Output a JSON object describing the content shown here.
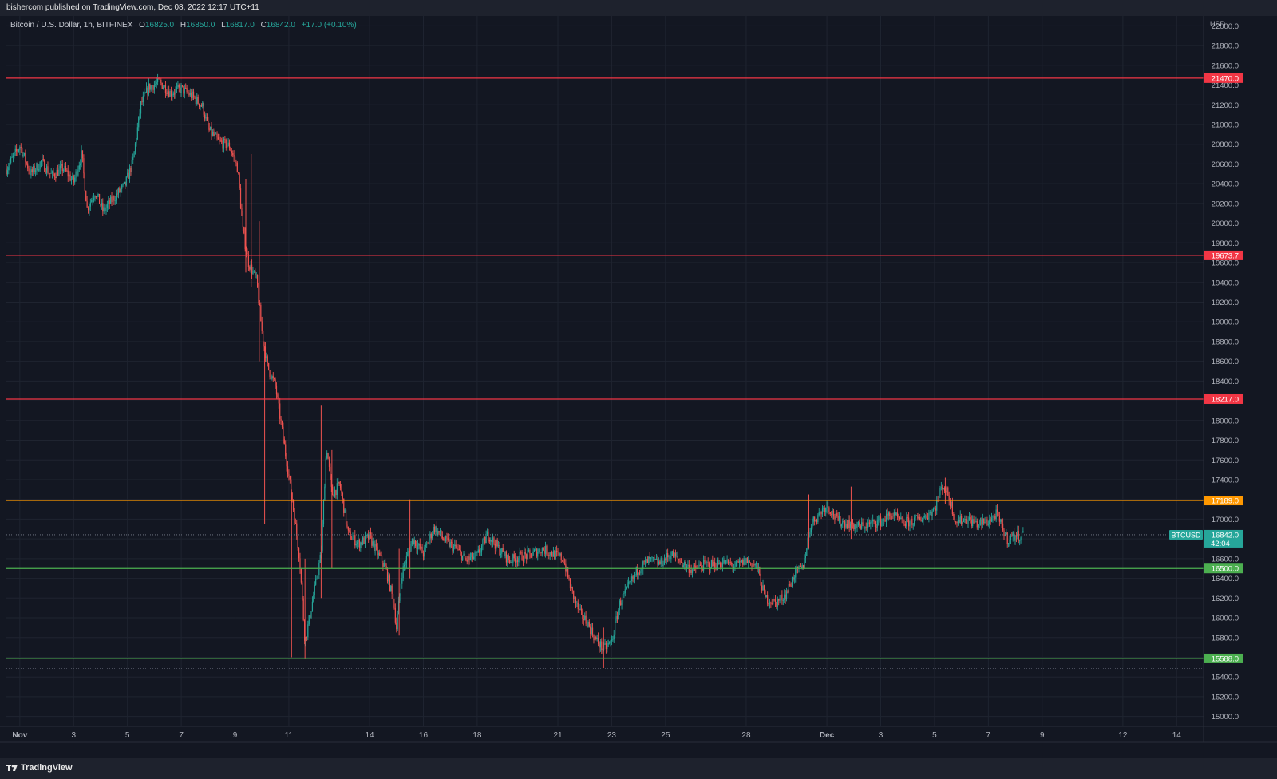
{
  "header": {
    "published_text": "bishercom published on TradingView.com, Dec 08, 2022 12:17 UTC+11"
  },
  "legend": {
    "symbol": "Bitcoin / U.S. Dollar, 1h, BITFINEX",
    "open_label": "O",
    "open": "16825.0",
    "high_label": "H",
    "high": "16850.0",
    "low_label": "L",
    "low": "16817.0",
    "close_label": "C",
    "close": "16842.0",
    "change": "+17.0 (+0.10%)"
  },
  "footer": {
    "brand": "TradingView"
  },
  "colors": {
    "background": "#131722",
    "grid": "#1f2430",
    "up": "#26a69a",
    "down": "#ef5350",
    "resistance": "#f23645",
    "pivot": "#ff9800",
    "support": "#4caf50",
    "price_label": "#26a69a"
  },
  "chart_data": {
    "type": "candlestick",
    "currency_label": "USD",
    "ylim": [
      14900,
      22100
    ],
    "y_ticks": [
      "22000.0",
      "21800.0",
      "21600.0",
      "21400.0",
      "21200.0",
      "21000.0",
      "20800.0",
      "20600.0",
      "20400.0",
      "20200.0",
      "20000.0",
      "19800.0",
      "19600.0",
      "19400.0",
      "19200.0",
      "19000.0",
      "18800.0",
      "18600.0",
      "18400.0",
      "18200.0",
      "18000.0",
      "17800.0",
      "17600.0",
      "17400.0",
      "17200.0",
      "17000.0",
      "16800.0",
      "16600.0",
      "16400.0",
      "16200.0",
      "16000.0",
      "15800.0",
      "15600.0",
      "15400.0",
      "15200.0",
      "15000.0"
    ],
    "x_ticks": [
      {
        "label": "Nov",
        "day": 0
      },
      {
        "label": "3",
        "day": 2
      },
      {
        "label": "5",
        "day": 4
      },
      {
        "label": "7",
        "day": 6
      },
      {
        "label": "9",
        "day": 8
      },
      {
        "label": "11",
        "day": 10
      },
      {
        "label": "14",
        "day": 13
      },
      {
        "label": "16",
        "day": 15
      },
      {
        "label": "18",
        "day": 17
      },
      {
        "label": "21",
        "day": 20
      },
      {
        "label": "23",
        "day": 22
      },
      {
        "label": "25",
        "day": 24
      },
      {
        "label": "28",
        "day": 27
      },
      {
        "label": "Dec",
        "day": 30
      },
      {
        "label": "3",
        "day": 32
      },
      {
        "label": "5",
        "day": 34
      },
      {
        "label": "7",
        "day": 36
      },
      {
        "label": "9",
        "day": 38
      },
      {
        "label": "12",
        "day": 41
      },
      {
        "label": "14",
        "day": 43
      }
    ],
    "x_range_days": [
      -0.5,
      44.0
    ],
    "horizontal_levels": [
      {
        "value": 21470.0,
        "label": "21470.0",
        "role": "resistance"
      },
      {
        "value": 19673.7,
        "label": "19673.7",
        "role": "resistance"
      },
      {
        "value": 18217.0,
        "label": "18217.0",
        "role": "resistance"
      },
      {
        "value": 17189.0,
        "label": "17189.0",
        "role": "pivot"
      },
      {
        "value": 16500.0,
        "label": "16500.0",
        "role": "support"
      },
      {
        "value": 15588.0,
        "label": "15588.0",
        "role": "support"
      }
    ],
    "last_price": {
      "value": 16842.0,
      "label": "16842.0",
      "symbol": "BTCUSD",
      "countdown": "42:04"
    },
    "price_path": [
      [
        -0.5,
        20550
      ],
      [
        0.0,
        20780
      ],
      [
        0.4,
        20500
      ],
      [
        0.8,
        20620
      ],
      [
        1.2,
        20480
      ],
      [
        1.6,
        20560
      ],
      [
        2.0,
        20420
      ],
      [
        2.3,
        20700
      ],
      [
        2.5,
        20150
      ],
      [
        2.8,
        20320
      ],
      [
        3.1,
        20120
      ],
      [
        3.5,
        20260
      ],
      [
        3.9,
        20380
      ],
      [
        4.2,
        20620
      ],
      [
        4.5,
        21200
      ],
      [
        4.8,
        21380
      ],
      [
        5.2,
        21430
      ],
      [
        5.6,
        21320
      ],
      [
        6.0,
        21360
      ],
      [
        6.4,
        21290
      ],
      [
        6.8,
        21180
      ],
      [
        7.0,
        20950
      ],
      [
        7.4,
        20820
      ],
      [
        7.8,
        20780
      ],
      [
        8.1,
        20550
      ],
      [
        8.3,
        19900
      ],
      [
        8.5,
        19600
      ],
      [
        8.8,
        19420
      ],
      [
        9.0,
        18900
      ],
      [
        9.2,
        18550
      ],
      [
        9.5,
        18350
      ],
      [
        9.8,
        17800
      ],
      [
        10.1,
        17250
      ],
      [
        10.4,
        16600
      ],
      [
        10.6,
        15750
      ],
      [
        10.9,
        16200
      ],
      [
        11.2,
        16650
      ],
      [
        11.4,
        17750
      ],
      [
        11.6,
        17250
      ],
      [
        11.9,
        17350
      ],
      [
        12.2,
        16850
      ],
      [
        12.6,
        16750
      ],
      [
        13.0,
        16820
      ],
      [
        13.3,
        16650
      ],
      [
        13.6,
        16500
      ],
      [
        13.9,
        16150
      ],
      [
        14.0,
        15900
      ],
      [
        14.2,
        16450
      ],
      [
        14.6,
        16800
      ],
      [
        15.0,
        16650
      ],
      [
        15.4,
        16920
      ],
      [
        15.8,
        16780
      ],
      [
        16.2,
        16700
      ],
      [
        16.6,
        16580
      ],
      [
        17.0,
        16630
      ],
      [
        17.4,
        16850
      ],
      [
        17.8,
        16700
      ],
      [
        18.2,
        16580
      ],
      [
        18.6,
        16620
      ],
      [
        19.0,
        16640
      ],
      [
        19.4,
        16700
      ],
      [
        19.8,
        16650
      ],
      [
        20.2,
        16600
      ],
      [
        20.5,
        16280
      ],
      [
        20.8,
        16050
      ],
      [
        21.1,
        15950
      ],
      [
        21.4,
        15780
      ],
      [
        21.7,
        15680
      ],
      [
        22.0,
        15760
      ],
      [
        22.3,
        16150
      ],
      [
        22.7,
        16350
      ],
      [
        23.0,
        16500
      ],
      [
        23.4,
        16580
      ],
      [
        23.8,
        16550
      ],
      [
        24.2,
        16650
      ],
      [
        24.6,
        16560
      ],
      [
        25.0,
        16480
      ],
      [
        25.4,
        16530
      ],
      [
        25.8,
        16540
      ],
      [
        26.2,
        16560
      ],
      [
        26.6,
        16520
      ],
      [
        27.0,
        16580
      ],
      [
        27.4,
        16520
      ],
      [
        27.7,
        16200
      ],
      [
        28.1,
        16150
      ],
      [
        28.5,
        16250
      ],
      [
        28.8,
        16450
      ],
      [
        29.1,
        16500
      ],
      [
        29.4,
        16950
      ],
      [
        29.7,
        17050
      ],
      [
        30.0,
        17150
      ],
      [
        30.4,
        16980
      ],
      [
        30.8,
        16960
      ],
      [
        31.2,
        16920
      ],
      [
        31.6,
        16950
      ],
      [
        32.0,
        16980
      ],
      [
        32.4,
        17050
      ],
      [
        32.8,
        16960
      ],
      [
        33.2,
        16980
      ],
      [
        33.6,
        17020
      ],
      [
        34.0,
        17100
      ],
      [
        34.3,
        17350
      ],
      [
        34.5,
        17250
      ],
      [
        34.8,
        16980
      ],
      [
        35.2,
        17000
      ],
      [
        35.6,
        16950
      ],
      [
        36.0,
        16980
      ],
      [
        36.3,
        17050
      ],
      [
        36.5,
        16920
      ],
      [
        36.7,
        16800
      ],
      [
        37.0,
        16830
      ],
      [
        37.3,
        16842
      ]
    ],
    "spikes": [
      {
        "day": 8.6,
        "low": 19350,
        "high": 20700
      },
      {
        "day": 8.4,
        "low": 19500,
        "high": 20450
      },
      {
        "day": 8.9,
        "low": 18600,
        "high": 20020
      },
      {
        "day": 9.1,
        "low": 16950,
        "high": 18750
      },
      {
        "day": 10.1,
        "low": 15600,
        "high": 17300
      },
      {
        "day": 10.6,
        "low": 15580,
        "high": 16600
      },
      {
        "day": 11.2,
        "low": 16200,
        "high": 18150
      },
      {
        "day": 11.6,
        "low": 16500,
        "high": 17700
      },
      {
        "day": 14.1,
        "low": 15820,
        "high": 16700
      },
      {
        "day": 14.5,
        "low": 16400,
        "high": 17200
      },
      {
        "day": 21.7,
        "low": 15490,
        "high": 15900
      },
      {
        "day": 29.3,
        "low": 16700,
        "high": 17250
      },
      {
        "day": 30.9,
        "low": 16800,
        "high": 17330
      },
      {
        "day": 34.4,
        "low": 17150,
        "high": 17420
      }
    ]
  }
}
